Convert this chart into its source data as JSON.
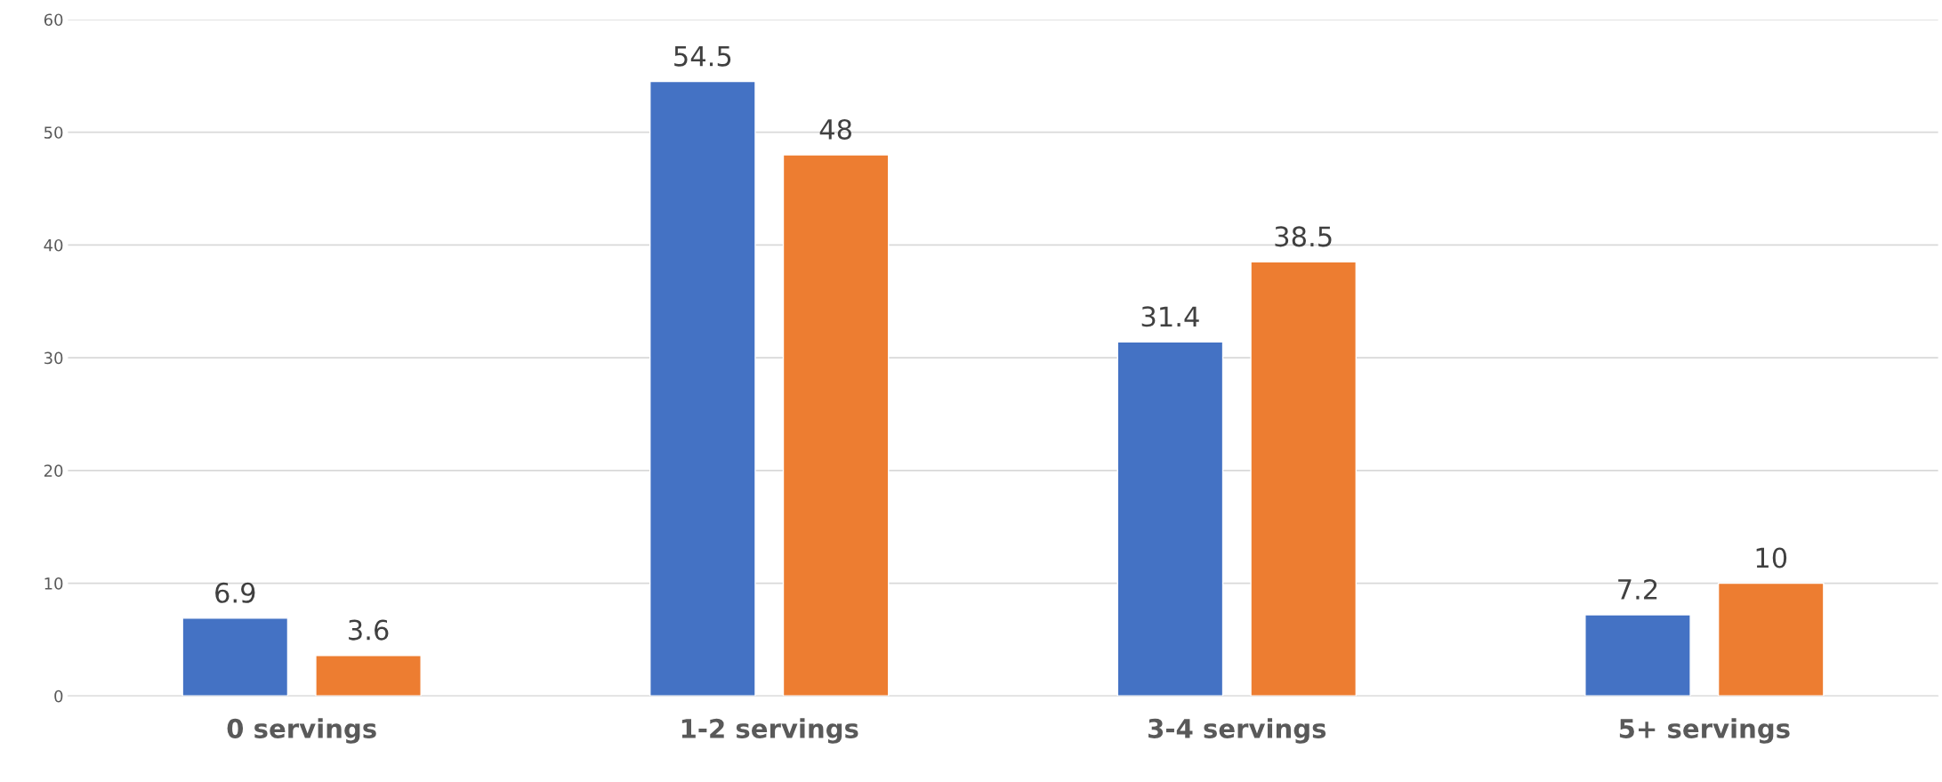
{
  "chart_data": {
    "type": "bar",
    "categories": [
      "0 servings",
      "1-2 servings",
      "3-4 servings",
      "5+ servings"
    ],
    "series": [
      {
        "color": "#4472c4",
        "values": [
          6.9,
          54.5,
          31.4,
          7.2
        ]
      },
      {
        "color": "#ed7d31",
        "values": [
          3.6,
          48,
          38.5,
          10
        ]
      }
    ],
    "ylim": [
      0,
      60
    ],
    "yticks": [
      0,
      10,
      20,
      30,
      40,
      50,
      60
    ],
    "grid": "y",
    "data_labels": true
  }
}
